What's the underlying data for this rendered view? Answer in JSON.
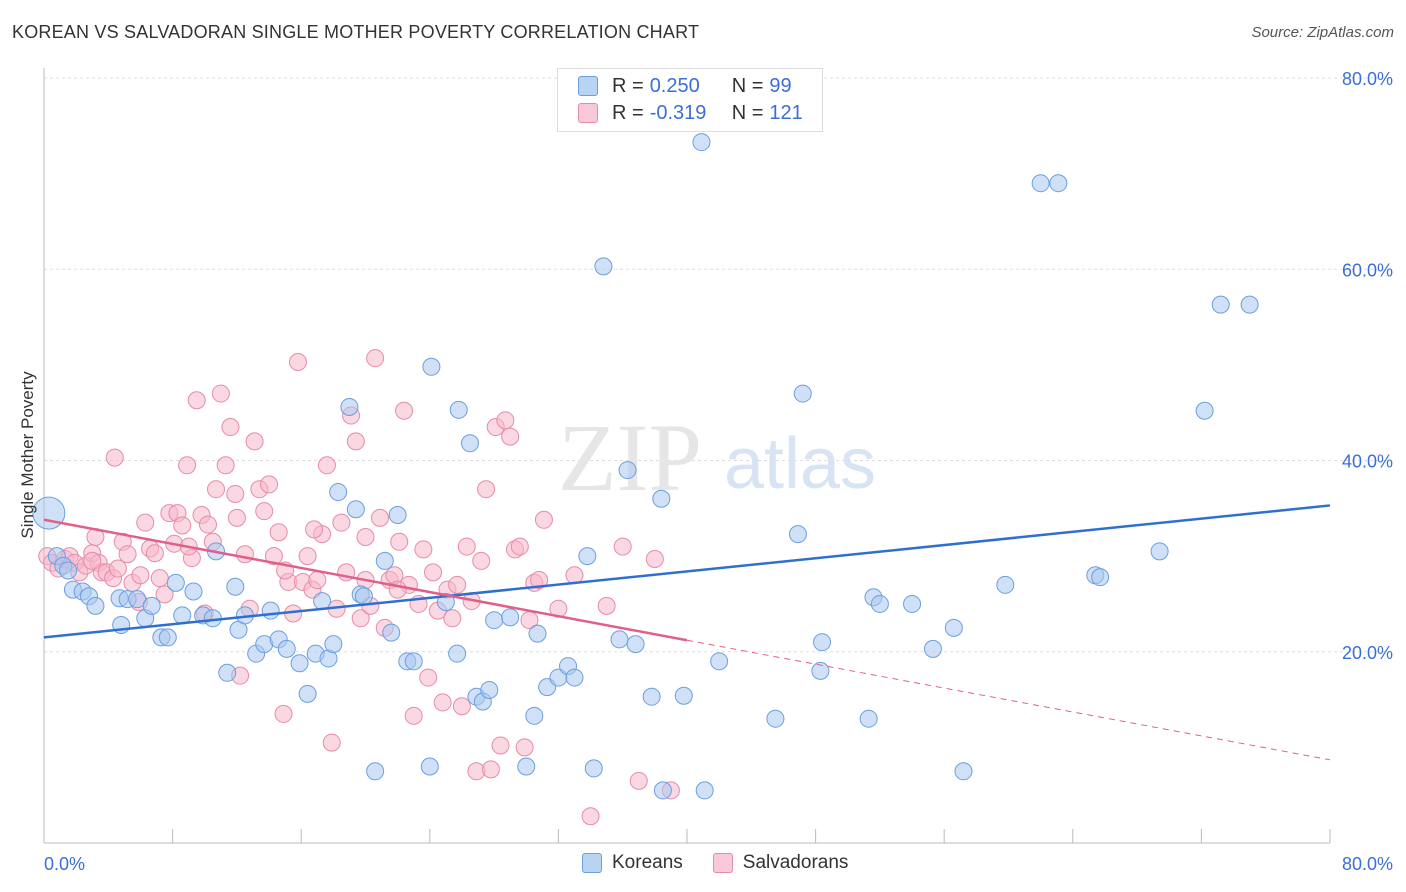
{
  "title": "KOREAN VS SALVADORAN SINGLE MOTHER POVERTY CORRELATION CHART",
  "source": "Source: ZipAtlas.com",
  "watermark": {
    "zip": "ZIP",
    "atlas": "atlas"
  },
  "legend": {
    "korean": {
      "r_label": "R =",
      "r_value": "0.250",
      "n_label": "N =",
      "n_value": "99"
    },
    "salvadoran": {
      "r_label": "R =",
      "r_value": "-0.319",
      "n_label": "N =",
      "n_value": "121"
    }
  },
  "colors": {
    "korean_fill": "#a9c9f0",
    "korean_stroke": "#6a9fe0",
    "korean_line": "#2f6fd0",
    "salvadoran_fill": "#f5b8cb",
    "salvadoran_stroke": "#e88aa8",
    "salvadoran_line": "#e0608a",
    "tick_text": "#3a6fd8",
    "grid": "#dddddd"
  },
  "chart_data": {
    "type": "scatter",
    "title": "KOREAN VS SALVADORAN SINGLE MOTHER POVERTY CORRELATION CHART",
    "xlabel": "",
    "ylabel": "Single Mother Poverty",
    "xlim": [
      0,
      80
    ],
    "ylim": [
      0,
      80
    ],
    "x_tick_labels": [
      "0.0%",
      "80.0%"
    ],
    "y_tick_labels": [
      "20.0%",
      "40.0%",
      "60.0%",
      "80.0%"
    ],
    "y_ticks": [
      20,
      40,
      60,
      80
    ],
    "grid": true,
    "legend_position": "top-center",
    "series": [
      {
        "name": "Koreans",
        "r": 0.25,
        "n": 99,
        "trend": {
          "x": [
            0,
            80
          ],
          "y": [
            21.5,
            35.3
          ]
        },
        "points": [
          [
            0.3,
            34.5
          ],
          [
            0.8,
            30
          ],
          [
            1.2,
            29
          ],
          [
            1.5,
            28.5
          ],
          [
            1.8,
            26.5
          ],
          [
            2.4,
            26.3
          ],
          [
            2.8,
            25.8
          ],
          [
            3.2,
            24.8
          ],
          [
            4.7,
            25.6
          ],
          [
            5.2,
            25.5
          ],
          [
            4.8,
            22.8
          ],
          [
            5.8,
            25.5
          ],
          [
            6.3,
            23.5
          ],
          [
            6.7,
            24.8
          ],
          [
            7.3,
            21.5
          ],
          [
            7.7,
            21.5
          ],
          [
            8.2,
            27.2
          ],
          [
            8.6,
            23.8
          ],
          [
            9.3,
            26.3
          ],
          [
            9.9,
            23.8
          ],
          [
            10.7,
            30.5
          ],
          [
            10.5,
            23.5
          ],
          [
            11.4,
            17.8
          ],
          [
            11.9,
            26.8
          ],
          [
            12.1,
            22.3
          ],
          [
            12.5,
            23.8
          ],
          [
            13.2,
            19.8
          ],
          [
            13.7,
            20.8
          ],
          [
            14.1,
            24.3
          ],
          [
            14.6,
            21.3
          ],
          [
            15.1,
            20.3
          ],
          [
            15.9,
            18.8
          ],
          [
            16.4,
            15.6
          ],
          [
            16.9,
            19.8
          ],
          [
            17.3,
            25.3
          ],
          [
            17.7,
            19.3
          ],
          [
            18.0,
            20.8
          ],
          [
            18.3,
            36.7
          ],
          [
            19.0,
            45.6
          ],
          [
            19.4,
            34.9
          ],
          [
            19.7,
            26.0
          ],
          [
            19.9,
            25.8
          ],
          [
            20.6,
            7.5
          ],
          [
            21.2,
            29.5
          ],
          [
            21.6,
            22.0
          ],
          [
            22.0,
            34.3
          ],
          [
            22.6,
            19.0
          ],
          [
            23.0,
            19.0
          ],
          [
            24.0,
            8.0
          ],
          [
            24.1,
            49.8
          ],
          [
            25.0,
            25.2
          ],
          [
            25.7,
            19.8
          ],
          [
            25.8,
            45.3
          ],
          [
            26.5,
            41.8
          ],
          [
            26.9,
            15.3
          ],
          [
            27.3,
            14.8
          ],
          [
            27.7,
            16.0
          ],
          [
            28.0,
            23.3
          ],
          [
            29.0,
            23.6
          ],
          [
            30.0,
            8.0
          ],
          [
            30.5,
            13.3
          ],
          [
            30.7,
            21.9
          ],
          [
            31.3,
            16.3
          ],
          [
            32.0,
            17.3
          ],
          [
            32.6,
            18.5
          ],
          [
            33.0,
            17.3
          ],
          [
            33.8,
            30.0
          ],
          [
            34.2,
            7.8
          ],
          [
            34.8,
            60.3
          ],
          [
            35.8,
            21.3
          ],
          [
            36.3,
            39.0
          ],
          [
            36.8,
            20.8
          ],
          [
            37.8,
            15.3
          ],
          [
            38.4,
            36.0
          ],
          [
            38.5,
            5.5
          ],
          [
            39.8,
            15.4
          ],
          [
            40.9,
            73.3
          ],
          [
            41.1,
            5.5
          ],
          [
            42.0,
            19.0
          ],
          [
            45.5,
            13.0
          ],
          [
            46.9,
            32.3
          ],
          [
            47.2,
            47.0
          ],
          [
            48.4,
            21.0
          ],
          [
            48.3,
            18.0
          ],
          [
            51.3,
            13.0
          ],
          [
            51.6,
            25.7
          ],
          [
            52.0,
            25.0
          ],
          [
            54.0,
            25.0
          ],
          [
            55.3,
            20.3
          ],
          [
            56.6,
            22.5
          ],
          [
            57.2,
            7.5
          ],
          [
            59.8,
            27.0
          ],
          [
            62.0,
            69.0
          ],
          [
            63.1,
            69.0
          ],
          [
            65.4,
            28.0
          ],
          [
            65.7,
            27.8
          ],
          [
            69.4,
            30.5
          ],
          [
            72.2,
            45.2
          ],
          [
            73.2,
            56.3
          ],
          [
            75.0,
            56.3
          ]
        ]
      },
      {
        "name": "Salvadorans",
        "r": -0.319,
        "n": 121,
        "trend": {
          "x": [
            0,
            40
          ],
          "y": [
            33.8,
            21.2
          ]
        },
        "trend_dashed": {
          "x": [
            40,
            80
          ],
          "y": [
            21.2,
            8.7
          ]
        },
        "points": [
          [
            0.2,
            30.0
          ],
          [
            0.5,
            29.3
          ],
          [
            0.9,
            28.7
          ],
          [
            1.3,
            29.7
          ],
          [
            1.6,
            30.0
          ],
          [
            1.9,
            29.3
          ],
          [
            2.2,
            28.3
          ],
          [
            2.6,
            29.0
          ],
          [
            3.0,
            30.3
          ],
          [
            3.2,
            32.0
          ],
          [
            3.4,
            29.3
          ],
          [
            3.6,
            28.3
          ],
          [
            3.9,
            28.3
          ],
          [
            4.3,
            27.7
          ],
          [
            4.4,
            40.3
          ],
          [
            4.6,
            28.7
          ],
          [
            4.9,
            31.5
          ],
          [
            5.2,
            30.2
          ],
          [
            5.5,
            27.2
          ],
          [
            5.9,
            25.2
          ],
          [
            6.3,
            33.5
          ],
          [
            6.6,
            30.8
          ],
          [
            6.9,
            30.3
          ],
          [
            7.2,
            27.7
          ],
          [
            7.5,
            26.0
          ],
          [
            7.8,
            34.5
          ],
          [
            8.1,
            31.3
          ],
          [
            8.3,
            34.5
          ],
          [
            8.6,
            33.2
          ],
          [
            8.9,
            39.5
          ],
          [
            9.2,
            29.8
          ],
          [
            9.5,
            46.3
          ],
          [
            9.8,
            34.3
          ],
          [
            10.2,
            33.3
          ],
          [
            10.5,
            31.5
          ],
          [
            10.7,
            37.0
          ],
          [
            11.0,
            47.0
          ],
          [
            11.3,
            39.5
          ],
          [
            11.6,
            43.5
          ],
          [
            11.9,
            36.5
          ],
          [
            12.2,
            17.5
          ],
          [
            12.5,
            30.2
          ],
          [
            12.8,
            24.5
          ],
          [
            13.1,
            42.0
          ],
          [
            13.4,
            37.0
          ],
          [
            13.7,
            34.7
          ],
          [
            14.0,
            37.5
          ],
          [
            14.3,
            30.0
          ],
          [
            14.6,
            32.5
          ],
          [
            14.9,
            13.5
          ],
          [
            15.2,
            27.3
          ],
          [
            15.5,
            24.0
          ],
          [
            15.8,
            50.3
          ],
          [
            16.1,
            27.3
          ],
          [
            16.4,
            30.0
          ],
          [
            16.7,
            26.5
          ],
          [
            17.0,
            27.5
          ],
          [
            17.3,
            32.3
          ],
          [
            17.6,
            39.5
          ],
          [
            17.9,
            10.5
          ],
          [
            18.2,
            24.5
          ],
          [
            18.5,
            33.5
          ],
          [
            18.8,
            28.3
          ],
          [
            19.1,
            44.7
          ],
          [
            19.4,
            42.0
          ],
          [
            19.7,
            23.5
          ],
          [
            20.0,
            32.0
          ],
          [
            20.3,
            24.8
          ],
          [
            20.6,
            50.7
          ],
          [
            20.9,
            34.0
          ],
          [
            21.2,
            22.5
          ],
          [
            21.5,
            27.5
          ],
          [
            21.8,
            28.0
          ],
          [
            22.1,
            31.5
          ],
          [
            22.4,
            45.2
          ],
          [
            22.7,
            27.0
          ],
          [
            23.0,
            13.3
          ],
          [
            23.3,
            25.0
          ],
          [
            23.6,
            30.7
          ],
          [
            23.9,
            17.3
          ],
          [
            24.2,
            28.3
          ],
          [
            24.5,
            24.3
          ],
          [
            24.8,
            14.7
          ],
          [
            25.1,
            26.5
          ],
          [
            25.4,
            23.5
          ],
          [
            25.7,
            27.0
          ],
          [
            26.0,
            14.3
          ],
          [
            26.3,
            31.0
          ],
          [
            26.6,
            25.3
          ],
          [
            26.9,
            7.5
          ],
          [
            27.2,
            29.5
          ],
          [
            27.5,
            37.0
          ],
          [
            27.8,
            7.7
          ],
          [
            28.1,
            43.5
          ],
          [
            28.4,
            10.2
          ],
          [
            28.7,
            44.2
          ],
          [
            29.0,
            42.5
          ],
          [
            29.3,
            30.7
          ],
          [
            29.6,
            31.0
          ],
          [
            29.9,
            10.0
          ],
          [
            30.2,
            23.3
          ],
          [
            30.5,
            27.2
          ],
          [
            30.8,
            27.5
          ],
          [
            31.1,
            33.8
          ],
          [
            32.0,
            24.5
          ],
          [
            33.0,
            28.0
          ],
          [
            34.0,
            2.8
          ],
          [
            35.0,
            24.8
          ],
          [
            36.0,
            31.0
          ],
          [
            37.0,
            6.5
          ],
          [
            38.0,
            29.7
          ],
          [
            39.0,
            5.5
          ],
          [
            20.0,
            27.5
          ],
          [
            22.0,
            26.5
          ],
          [
            15.0,
            28.5
          ],
          [
            16.8,
            32.8
          ],
          [
            10.0,
            24.0
          ],
          [
            6.0,
            28.0
          ],
          [
            3.0,
            29.5
          ],
          [
            12.0,
            34.0
          ],
          [
            9.0,
            31.0
          ]
        ]
      }
    ]
  }
}
